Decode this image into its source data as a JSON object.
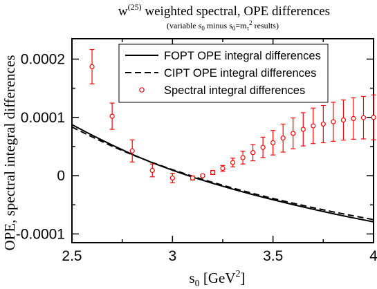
{
  "chart_data": {
    "type": "line",
    "title": {
      "prefix": "w",
      "superscript": "(25)",
      "rest": " weighted spectral, OPE differences"
    },
    "subtitle": {
      "part1": "(variable s",
      "sub1": "0",
      "part2": " minus s",
      "sub2": "0",
      "part3": "=m",
      "sub3": "τ",
      "sup3": "2",
      "part4": " results)"
    },
    "xlabel": {
      "prefix": "s",
      "sub": "0",
      "unit_open": " [GeV",
      "sup": "2",
      "unit_close": "]"
    },
    "ylabel": "OPE, spectral integral differences",
    "xlim": [
      2.5,
      4.0
    ],
    "ylim": [
      -0.000115,
      0.000235
    ],
    "x_ticks": [
      2.5,
      3.0,
      3.5,
      4.0
    ],
    "x_tick_labels": [
      "2.5",
      "3",
      "3.5",
      "4"
    ],
    "y_ticks": [
      -0.0001,
      0,
      0.0001,
      0.0002
    ],
    "y_tick_labels": [
      "-0.0001",
      "0",
      "0.0001",
      "0.0002"
    ],
    "grid": false,
    "legend_position": "top-right",
    "series": [
      {
        "name": "FOPT OPE integral differences",
        "style": "solid",
        "color": "#000000",
        "x": [
          2.5,
          2.6,
          2.7,
          2.8,
          2.9,
          3.0,
          3.1,
          3.2,
          3.3,
          3.4,
          3.5,
          3.6,
          3.7,
          3.8,
          3.9,
          4.0
        ],
        "y": [
          8.75e-05,
          6.95e-05,
          5.25e-05,
          3.65e-05,
          2.22e-05,
          9.3e-06,
          -2.5e-06,
          -1.32e-05,
          -2.32e-05,
          -3.26e-05,
          -4.13e-05,
          -4.97e-05,
          -5.77e-05,
          -6.53e-05,
          -7.25e-05,
          -7.93e-05
        ]
      },
      {
        "name": "CIPT OPE integral differences",
        "style": "dashed",
        "color": "#000000",
        "x": [
          2.5,
          2.6,
          2.7,
          2.8,
          2.9,
          3.0,
          3.1,
          3.2,
          3.3,
          3.4,
          3.5,
          3.6,
          3.7,
          3.8,
          3.9,
          4.0
        ],
        "y": [
          8.35e-05,
          6.65e-05,
          5.05e-05,
          3.58e-05,
          2.25e-05,
          1.03e-05,
          -1e-06,
          -1.15e-05,
          -2.13e-05,
          -3.05e-05,
          -3.92e-05,
          -4.73e-05,
          -5.5e-05,
          -6.22e-05,
          -6.9e-05,
          -7.55e-05
        ]
      },
      {
        "name": "Spectral integral differences",
        "style": "markers",
        "color": "#ff0000",
        "x": [
          2.6,
          2.7,
          2.8,
          2.9,
          3.0,
          3.1,
          3.15,
          3.2,
          3.25,
          3.3,
          3.35,
          3.4,
          3.45,
          3.5,
          3.55,
          3.6,
          3.65,
          3.7,
          3.75,
          3.8,
          3.85,
          3.9,
          3.95,
          4.0
        ],
        "y": [
          0.000187,
          0.000102,
          4.25e-05,
          9e-06,
          -4e-06,
          -4e-06,
          0.0,
          5.5e-06,
          1.25e-05,
          2.25e-05,
          3.1e-05,
          3.95e-05,
          4.85e-05,
          5.65e-05,
          6.45e-05,
          7.25e-05,
          7.95e-05,
          8.55e-05,
          8.85e-05,
          9.25e-05,
          9.55e-05,
          9.8e-05,
          9.95e-05,
          0.0001
        ],
        "err": [
          2.95e-05,
          2.25e-05,
          1.9e-05,
          1.1e-05,
          8e-06,
          3.5e-06,
          1.5e-06,
          3.5e-06,
          5e-06,
          7.5e-06,
          1.1e-05,
          1.4e-05,
          1.75e-05,
          2.1e-05,
          2.4e-05,
          2.65e-05,
          2.85e-05,
          3.05e-05,
          3.2e-05,
          3.35e-05,
          3.45e-05,
          3.55e-05,
          3.65e-05,
          3.85e-05
        ]
      }
    ]
  }
}
